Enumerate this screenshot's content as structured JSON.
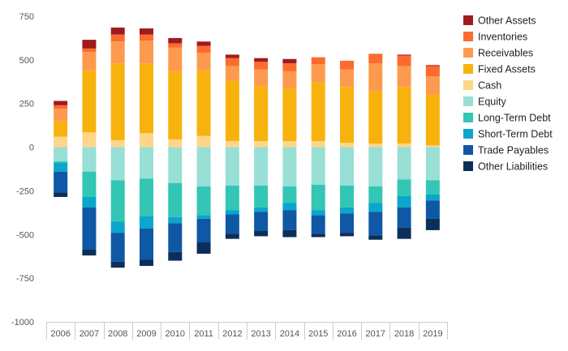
{
  "chart_data": {
    "type": "bar",
    "stacked": true,
    "diverging": true,
    "title": "",
    "xlabel": "",
    "ylabel": "",
    "ylim": [
      -1000,
      750
    ],
    "yticks": [
      750,
      500,
      250,
      0,
      -250,
      -500,
      -750,
      -1000
    ],
    "grid": false,
    "legend_position": "right",
    "categories": [
      "2006",
      "2007",
      "2008",
      "2009",
      "2010",
      "2011",
      "2012",
      "2013",
      "2014",
      "2015",
      "2016",
      "2017",
      "2018",
      "2019"
    ],
    "series": [
      {
        "name": "Cash",
        "side": "positive",
        "color": "#fdd68a",
        "values": [
          60,
          85,
          40,
          80,
          45,
          65,
          35,
          35,
          35,
          35,
          25,
          20,
          20,
          10
        ]
      },
      {
        "name": "Fixed Assets",
        "side": "positive",
        "color": "#f8b20e",
        "values": [
          90,
          355,
          440,
          400,
          390,
          375,
          345,
          315,
          300,
          335,
          320,
          300,
          325,
          290
        ]
      },
      {
        "name": "Receivables",
        "side": "positive",
        "color": "#fd9a4e",
        "values": [
          70,
          105,
          125,
          130,
          135,
          100,
          85,
          95,
          100,
          105,
          100,
          160,
          120,
          105
        ]
      },
      {
        "name": "Inventories",
        "side": "positive",
        "color": "#fd6b2f",
        "values": [
          20,
          20,
          40,
          35,
          25,
          40,
          45,
          45,
          45,
          40,
          50,
          55,
          60,
          60
        ]
      },
      {
        "name": "Other Assets",
        "side": "positive",
        "color": "#a01b1e",
        "values": [
          25,
          50,
          40,
          35,
          30,
          25,
          20,
          20,
          25,
          0,
          0,
          0,
          5,
          5
        ]
      },
      {
        "name": "Equity",
        "side": "negative",
        "color": "#98dfd5",
        "values": [
          -80,
          -140,
          -190,
          -180,
          -205,
          -225,
          -220,
          -220,
          -225,
          -215,
          -220,
          -225,
          -185,
          -190
        ]
      },
      {
        "name": "Long-Term Debt",
        "side": "negative",
        "color": "#33c6b4",
        "values": [
          -10,
          -145,
          -235,
          -215,
          -195,
          -165,
          -140,
          -125,
          -95,
          -145,
          -125,
          -95,
          -95,
          -80
        ]
      },
      {
        "name": "Short-Term Debt",
        "side": "negative",
        "color": "#0aa6cc",
        "values": [
          -50,
          -60,
          -65,
          -70,
          -35,
          -20,
          -25,
          -25,
          -40,
          -30,
          -35,
          -50,
          -65,
          -35
        ]
      },
      {
        "name": "Trade Payables",
        "side": "negative",
        "color": "#0f58a5",
        "values": [
          -120,
          -240,
          -165,
          -180,
          -165,
          -135,
          -110,
          -110,
          -115,
          -105,
          -110,
          -135,
          -115,
          -105
        ]
      },
      {
        "name": "Other Liabilities",
        "side": "negative",
        "color": "#0b2f5a",
        "values": [
          -25,
          -35,
          -35,
          -35,
          -50,
          -65,
          -30,
          -30,
          -40,
          -20,
          -20,
          -25,
          -65,
          -65
        ]
      }
    ],
    "legend_order": [
      "Other Assets",
      "Inventories",
      "Receivables",
      "Fixed Assets",
      "Cash",
      "Equity",
      "Long-Term Debt",
      "Short-Term Debt",
      "Trade Payables",
      "Other Liabilities"
    ]
  }
}
